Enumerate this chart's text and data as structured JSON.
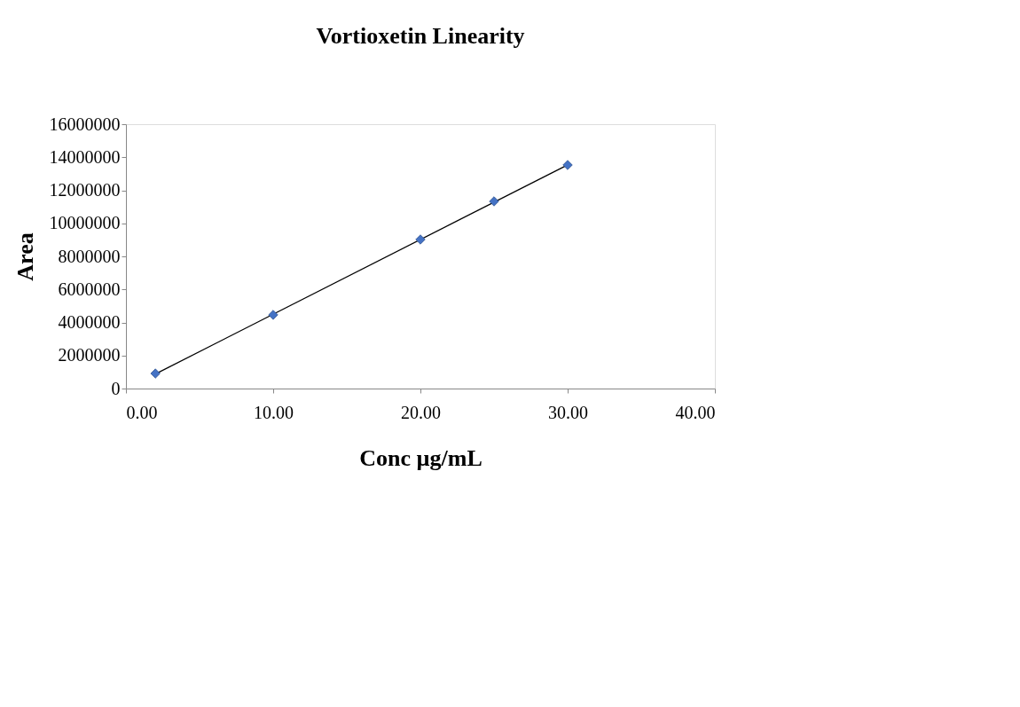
{
  "chart_data": {
    "type": "scatter",
    "title": "Vortioxetin Linearity",
    "xlabel": "Conc µg/mL",
    "ylabel": "Area",
    "x": [
      2,
      10,
      20,
      25,
      30
    ],
    "series": [
      {
        "color": "#4472c4",
        "marker": "diamond",
        "values": [
          910000,
          4460000,
          9020000,
          11330000,
          13530000
        ]
      },
      {
        "type": "line",
        "color": "#000000",
        "marker": "none",
        "line_style": "solid",
        "x": [
          2,
          30
        ],
        "values": [
          880000,
          13540000
        ]
      }
    ],
    "xlim": [
      0,
      40
    ],
    "xticks": [
      {
        "value": 0,
        "label": "0.00"
      },
      {
        "value": 10,
        "label": "10.00"
      },
      {
        "value": 20,
        "label": "20.00"
      },
      {
        "value": 30,
        "label": "30.00"
      },
      {
        "value": 40,
        "label": "40.00"
      }
    ],
    "ylim": [
      0,
      16000000
    ],
    "yticks": [
      0,
      2000000,
      4000000,
      6000000,
      8000000,
      10000000,
      12000000,
      14000000,
      16000000
    ],
    "grid": false
  }
}
